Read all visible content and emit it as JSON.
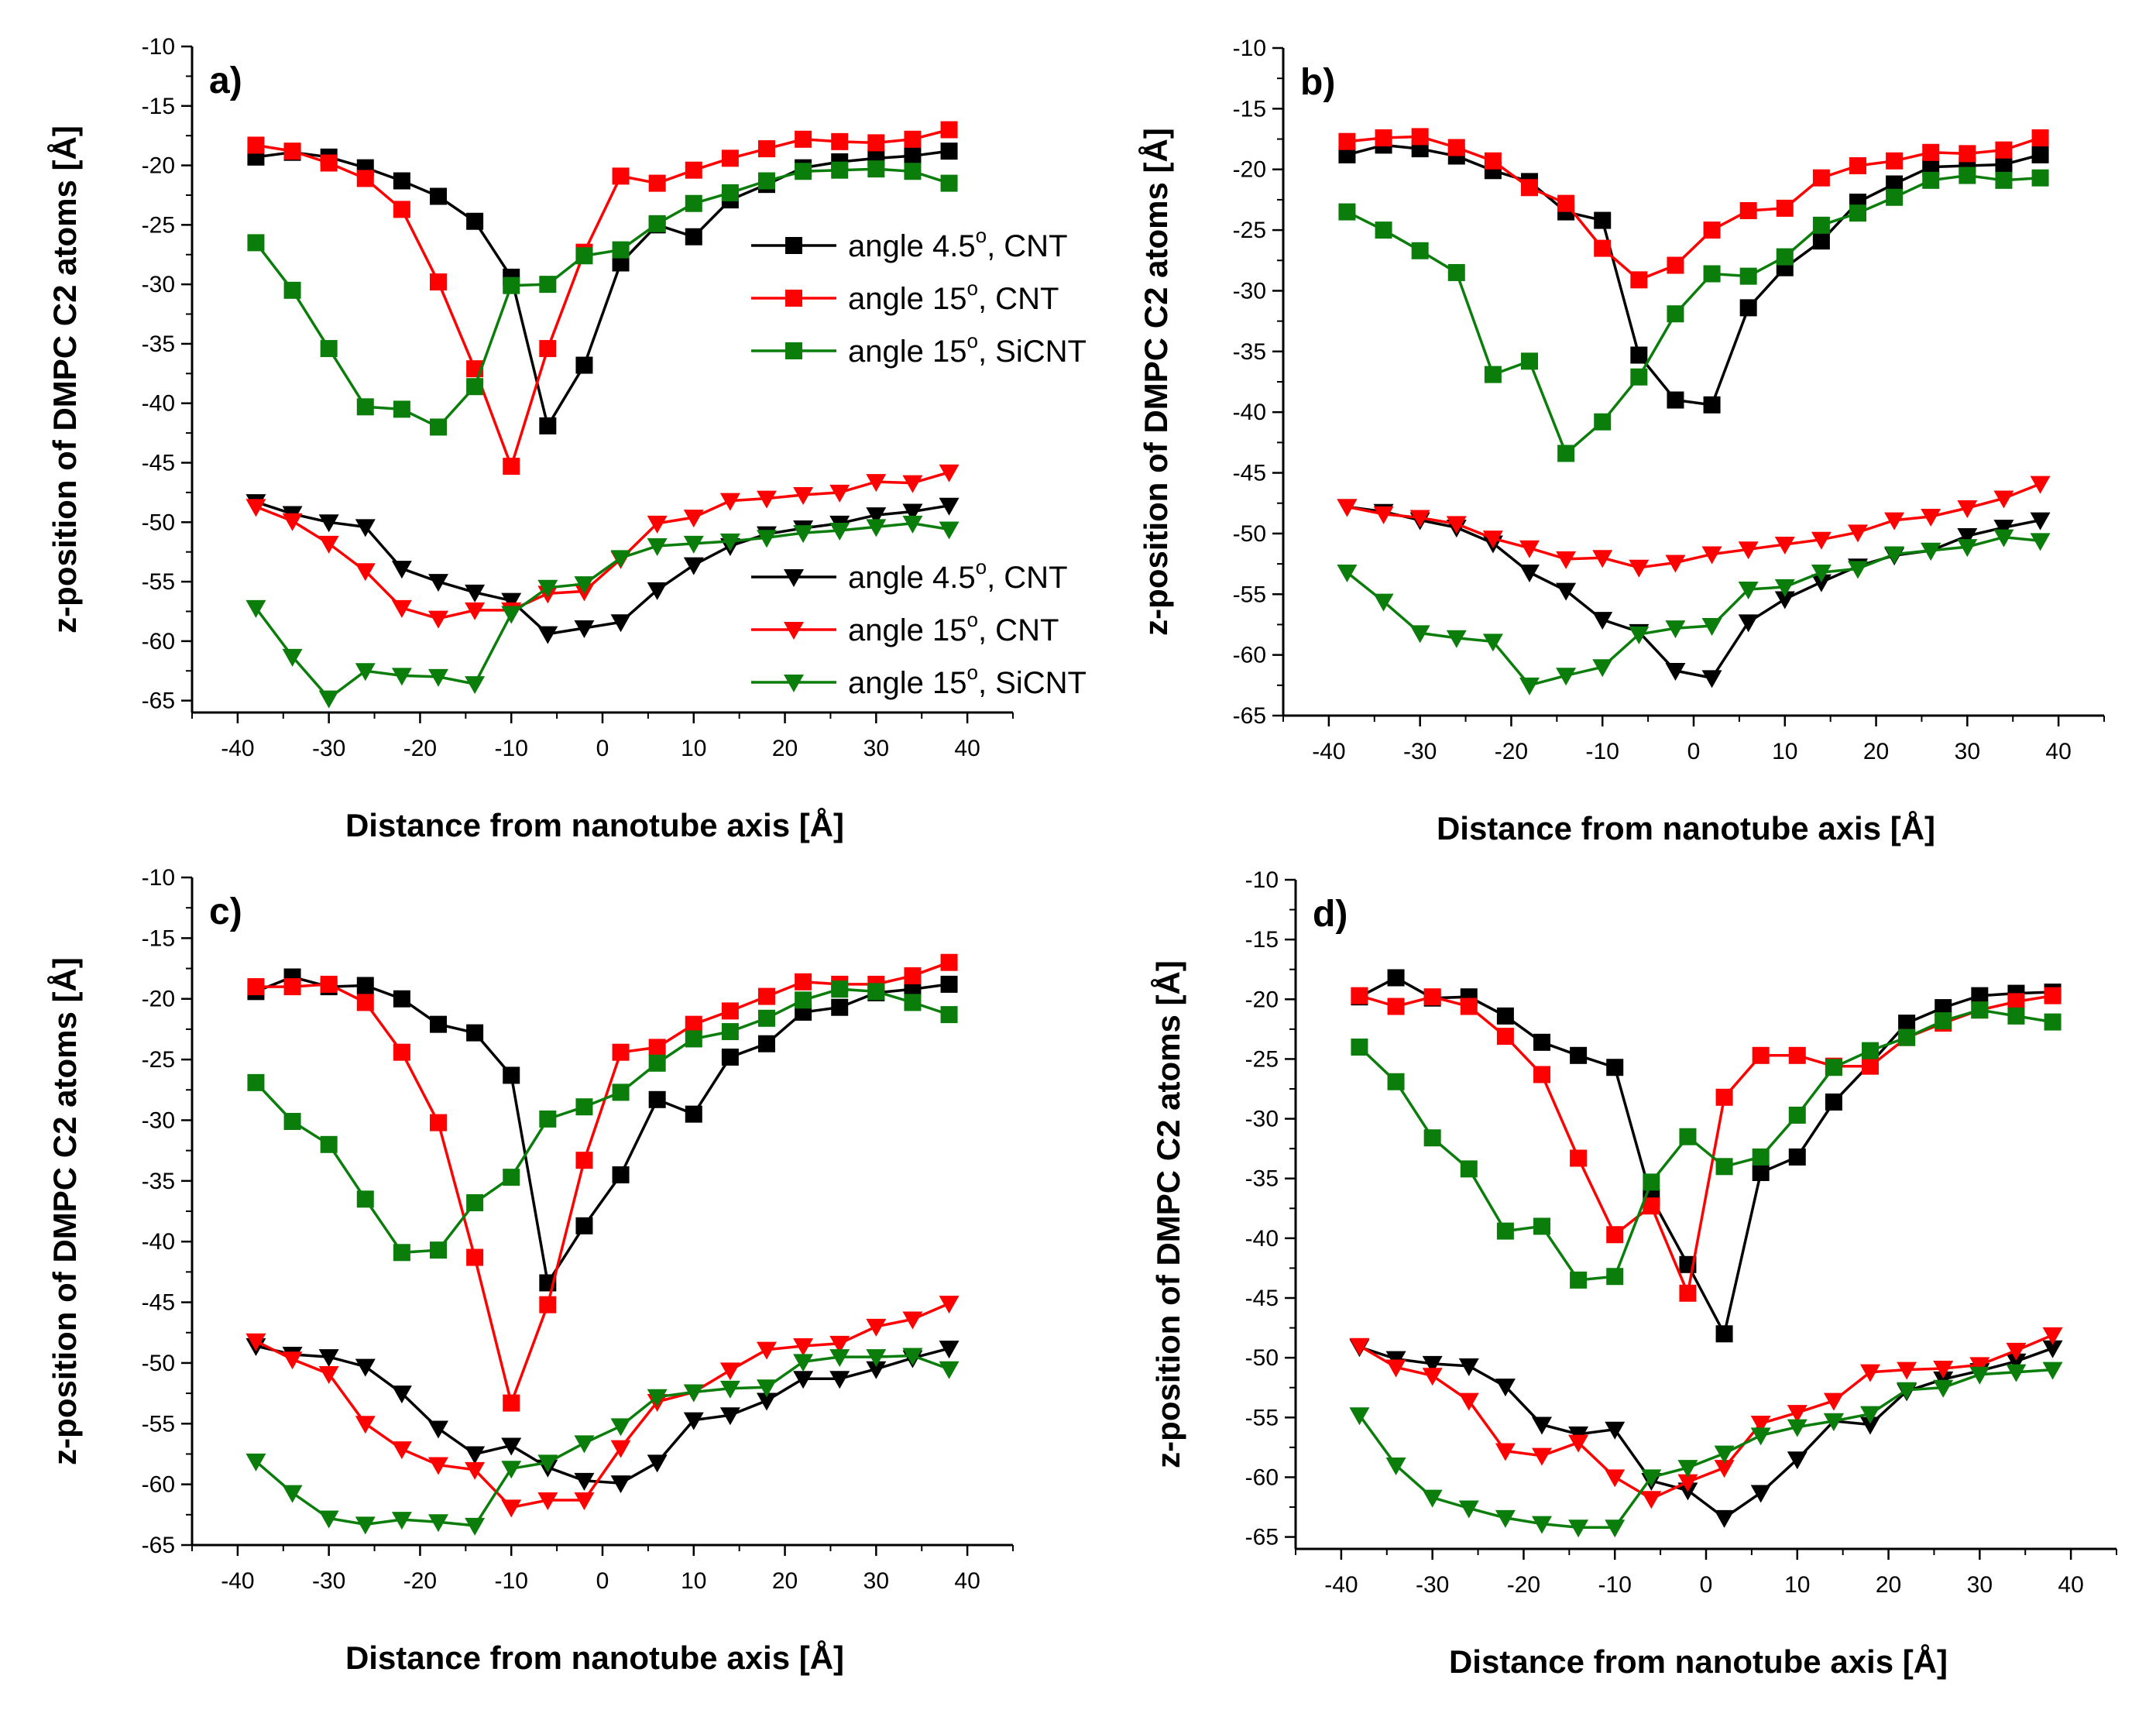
{
  "colors": {
    "CNT45": "#000000",
    "CNT15": "#ff0000",
    "SiCNT15": "#0a7d0a"
  },
  "chart_data": [
    {
      "type": "line",
      "panel": "a)",
      "xlabel": "Distance from nanotube axis [Å]",
      "ylabel": "z-position of DMPC C2 atoms [Å]",
      "xlim": [
        -45,
        45
      ],
      "ylim": [
        -66,
        -10
      ],
      "xticks": [
        -40,
        -30,
        -20,
        -10,
        0,
        10,
        20,
        30,
        40
      ],
      "yticks": [
        -65,
        -60,
        -55,
        -50,
        -45,
        -40,
        -35,
        -30,
        -25,
        -20,
        -15,
        -10
      ],
      "x": [
        -38,
        -34,
        -30,
        -26,
        -22,
        -18,
        -14,
        -10,
        -6,
        -2,
        2,
        6,
        10,
        14,
        18,
        22,
        26,
        30,
        34,
        38
      ],
      "legend_position": "right-middle",
      "series": [
        {
          "name": "angle 4.5o, CNT",
          "group": "upper",
          "marker": "square",
          "color_key": "CNT45",
          "values": [
            -19.3,
            -18.9,
            -19.3,
            -20.2,
            -21.3,
            -22.6,
            -24.7,
            -29.4,
            -41.9,
            -36.8,
            -28.2,
            -25.0,
            -26.0,
            -22.9,
            -21.6,
            -20.2,
            -19.7,
            -19.4,
            -19.2,
            -18.8
          ]
        },
        {
          "name": "angle 15o, CNT",
          "group": "upper",
          "marker": "square",
          "color_key": "CNT15",
          "values": [
            -18.3,
            -18.8,
            -19.8,
            -21.1,
            -23.7,
            -29.8,
            -37.1,
            -45.3,
            -35.4,
            -27.3,
            -20.9,
            -21.5,
            -20.4,
            -19.4,
            -18.6,
            -17.8,
            -18.0,
            -18.1,
            -17.8,
            -17.0
          ]
        },
        {
          "name": "angle 15o, SiCNT",
          "group": "upper",
          "marker": "square",
          "color_key": "SiCNT15",
          "values": [
            -26.5,
            -30.5,
            -35.4,
            -40.3,
            -40.5,
            -42.0,
            -38.6,
            -30.1,
            -30.0,
            -27.6,
            -27.1,
            -24.9,
            -23.2,
            -22.3,
            -21.3,
            -20.5,
            -20.4,
            -20.3,
            -20.5,
            -21.5
          ]
        },
        {
          "name": "angle 4.5o, CNT",
          "group": "lower",
          "marker": "triangle",
          "color_key": "CNT45",
          "values": [
            -48.3,
            -49.3,
            -50.0,
            -50.4,
            -53.9,
            -55.0,
            -55.9,
            -56.6,
            -59.4,
            -58.9,
            -58.4,
            -55.7,
            -53.6,
            -52.0,
            -51.0,
            -50.5,
            -50.1,
            -49.4,
            -49.1,
            -48.6
          ]
        },
        {
          "name": "angle 15o, CNT",
          "group": "lower",
          "marker": "triangle",
          "color_key": "CNT15",
          "values": [
            -48.7,
            -49.9,
            -51.8,
            -54.1,
            -57.2,
            -58.1,
            -57.4,
            -57.4,
            -56.0,
            -55.8,
            -53.1,
            -50.1,
            -49.6,
            -48.2,
            -48.0,
            -47.7,
            -47.5,
            -46.6,
            -46.7,
            -45.8
          ]
        },
        {
          "name": "angle 15o, SiCNT",
          "group": "lower",
          "marker": "triangle",
          "color_key": "SiCNT15",
          "values": [
            -57.2,
            -61.3,
            -64.8,
            -62.5,
            -62.9,
            -63.0,
            -63.6,
            -57.7,
            -55.5,
            -55.2,
            -53.0,
            -52.0,
            -51.8,
            -51.6,
            -51.3,
            -50.9,
            -50.7,
            -50.4,
            -50.1,
            -50.6
          ]
        }
      ]
    },
    {
      "type": "line",
      "panel": "b)",
      "xlabel": "Distance from nanotube axis [Å]",
      "ylabel": "z-position of DMPC C2 atoms [Å]",
      "xlim": [
        -45,
        45
      ],
      "ylim": [
        -65,
        -10
      ],
      "xticks": [
        -40,
        -30,
        -20,
        -10,
        0,
        10,
        20,
        30,
        40
      ],
      "yticks": [
        -65,
        -60,
        -55,
        -50,
        -45,
        -40,
        -35,
        -30,
        -25,
        -20,
        -15,
        -10
      ],
      "x": [
        -38,
        -34,
        -30,
        -26,
        -22,
        -18,
        -14,
        -10,
        -6,
        -2,
        2,
        6,
        10,
        14,
        18,
        22,
        26,
        30,
        34,
        38
      ],
      "series": [
        {
          "name": "angle 4.5o, CNT",
          "group": "upper",
          "marker": "square",
          "color_key": "CNT45",
          "values": [
            -18.8,
            -18.0,
            -18.3,
            -18.9,
            -20.1,
            -21.0,
            -23.5,
            -24.2,
            -35.3,
            -39.0,
            -39.4,
            -31.4,
            -28.1,
            -25.9,
            -22.7,
            -21.2,
            -19.8,
            -19.7,
            -19.6,
            -18.8
          ]
        },
        {
          "name": "angle 15o, CNT",
          "group": "upper",
          "marker": "square",
          "color_key": "CNT15",
          "values": [
            -17.7,
            -17.4,
            -17.3,
            -18.2,
            -19.3,
            -21.5,
            -22.8,
            -26.5,
            -29.1,
            -27.9,
            -25.0,
            -23.4,
            -23.2,
            -20.7,
            -19.7,
            -19.3,
            -18.6,
            -18.7,
            -18.4,
            -17.4
          ]
        },
        {
          "name": "angle 15o, SiCNT",
          "group": "upper",
          "marker": "square",
          "color_key": "SiCNT15",
          "values": [
            -23.5,
            -25.0,
            -26.7,
            -28.5,
            -36.9,
            -35.8,
            -43.4,
            -40.8,
            -37.1,
            -31.9,
            -28.6,
            -28.8,
            -27.2,
            -24.6,
            -23.6,
            -22.3,
            -20.9,
            -20.5,
            -20.9,
            -20.7
          ]
        },
        {
          "name": "angle 4.5o, CNT",
          "group": "lower",
          "marker": "triangle",
          "color_key": "CNT45",
          "values": [
            -47.8,
            -48.2,
            -48.9,
            -49.5,
            -50.8,
            -53.2,
            -54.7,
            -57.1,
            -58.1,
            -61.3,
            -61.9,
            -57.3,
            -55.4,
            -54.0,
            -52.7,
            -51.8,
            -51.4,
            -50.2,
            -49.5,
            -48.9
          ]
        },
        {
          "name": "angle 15o, CNT",
          "group": "lower",
          "marker": "triangle",
          "color_key": "CNT15",
          "values": [
            -47.8,
            -48.4,
            -48.7,
            -49.2,
            -50.4,
            -51.2,
            -52.1,
            -52.0,
            -52.8,
            -52.4,
            -51.7,
            -51.3,
            -50.9,
            -50.5,
            -49.9,
            -48.9,
            -48.6,
            -47.9,
            -47.1,
            -45.9
          ]
        },
        {
          "name": "angle 15o, SiCNT",
          "group": "lower",
          "marker": "triangle",
          "color_key": "SiCNT15",
          "values": [
            -53.2,
            -55.6,
            -58.2,
            -58.6,
            -58.9,
            -62.5,
            -61.7,
            -61.0,
            -58.3,
            -57.8,
            -57.6,
            -54.6,
            -54.4,
            -53.2,
            -52.9,
            -51.7,
            -51.4,
            -51.1,
            -50.3,
            -50.6
          ]
        }
      ]
    },
    {
      "type": "line",
      "panel": "c)",
      "xlabel": "Distance from nanotube axis [Å]",
      "ylabel": "z-position of DMPC C2 atoms [Å]",
      "xlim": [
        -45,
        45
      ],
      "ylim": [
        -65,
        -10
      ],
      "xticks": [
        -40,
        -30,
        -20,
        -10,
        0,
        10,
        20,
        30,
        40
      ],
      "yticks": [
        -65,
        -60,
        -55,
        -50,
        -45,
        -40,
        -35,
        -30,
        -25,
        -20,
        -15,
        -10
      ],
      "x": [
        -38,
        -34,
        -30,
        -26,
        -22,
        -18,
        -14,
        -10,
        -6,
        -2,
        2,
        6,
        10,
        14,
        18,
        22,
        26,
        30,
        34,
        38
      ],
      "series": [
        {
          "name": "angle 4.5o, CNT",
          "group": "upper",
          "marker": "square",
          "color_key": "CNT45",
          "values": [
            -19.4,
            -18.2,
            -19.0,
            -18.9,
            -20.0,
            -22.1,
            -22.8,
            -26.3,
            -43.4,
            -38.7,
            -34.5,
            -28.3,
            -29.5,
            -24.8,
            -23.7,
            -21.1,
            -20.7,
            -19.5,
            -19.2,
            -18.8
          ]
        },
        {
          "name": "angle 15o, CNT",
          "group": "upper",
          "marker": "square",
          "color_key": "CNT15",
          "values": [
            -19.0,
            -19.0,
            -18.8,
            -20.3,
            -24.4,
            -30.2,
            -41.3,
            -53.3,
            -45.2,
            -33.3,
            -24.4,
            -24.0,
            -22.1,
            -21.0,
            -19.8,
            -18.6,
            -18.8,
            -18.8,
            -18.1,
            -17.0
          ]
        },
        {
          "name": "angle 15o, SiCNT",
          "group": "upper",
          "marker": "square",
          "color_key": "SiCNT15",
          "values": [
            -26.9,
            -30.1,
            -32.0,
            -36.5,
            -40.9,
            -40.7,
            -36.8,
            -34.7,
            -29.9,
            -28.9,
            -27.7,
            -25.3,
            -23.3,
            -22.7,
            -21.6,
            -20.1,
            -19.2,
            -19.4,
            -20.3,
            -21.3
          ]
        },
        {
          "name": "angle 4.5o, CNT",
          "group": "lower",
          "marker": "triangle",
          "color_key": "CNT45",
          "values": [
            -48.6,
            -49.3,
            -49.5,
            -50.3,
            -52.5,
            -55.4,
            -57.5,
            -56.8,
            -58.6,
            -59.7,
            -59.9,
            -58.2,
            -54.7,
            -54.3,
            -53.1,
            -51.3,
            -51.3,
            -50.5,
            -49.6,
            -48.8
          ]
        },
        {
          "name": "angle 15o, CNT",
          "group": "lower",
          "marker": "triangle",
          "color_key": "CNT15",
          "values": [
            -48.2,
            -49.7,
            -50.9,
            -55.0,
            -57.1,
            -58.4,
            -58.8,
            -61.9,
            -61.3,
            -61.3,
            -57.0,
            -53.2,
            -52.4,
            -50.6,
            -48.9,
            -48.6,
            -48.4,
            -47.0,
            -46.4,
            -45.1
          ]
        },
        {
          "name": "angle 15o, SiCNT",
          "group": "lower",
          "marker": "triangle",
          "color_key": "SiCNT15",
          "values": [
            -58.1,
            -60.7,
            -62.8,
            -63.3,
            -62.9,
            -63.1,
            -63.4,
            -58.7,
            -58.2,
            -56.6,
            -55.2,
            -52.8,
            -52.4,
            -52.1,
            -52.0,
            -49.9,
            -49.5,
            -49.5,
            -49.4,
            -50.5
          ]
        }
      ]
    },
    {
      "type": "line",
      "panel": "d)",
      "xlabel": "Distance from nanotube axis [Å]",
      "ylabel": "z-position of DMPC C2 atoms [Å]",
      "xlim": [
        -45,
        45
      ],
      "ylim": [
        -66,
        -10
      ],
      "xticks": [
        -40,
        -30,
        -20,
        -10,
        0,
        10,
        20,
        30,
        40
      ],
      "yticks": [
        -65,
        -60,
        -55,
        -50,
        -45,
        -40,
        -35,
        -30,
        -25,
        -20,
        -15,
        -10
      ],
      "x": [
        -38,
        -34,
        -30,
        -26,
        -22,
        -18,
        -14,
        -10,
        -6,
        -2,
        2,
        6,
        10,
        14,
        18,
        22,
        26,
        30,
        34,
        38
      ],
      "series": [
        {
          "name": "angle 4.5o, CNT",
          "group": "upper",
          "marker": "square",
          "color_key": "CNT45",
          "values": [
            -19.8,
            -18.2,
            -19.9,
            -19.8,
            -21.4,
            -23.6,
            -24.7,
            -25.7,
            -36.6,
            -42.2,
            -48.0,
            -34.5,
            -33.2,
            -28.6,
            -25.4,
            -22.0,
            -20.7,
            -19.7,
            -19.5,
            -19.4
          ]
        },
        {
          "name": "angle 15o, CNT",
          "group": "upper",
          "marker": "square",
          "color_key": "CNT15",
          "values": [
            -19.7,
            -20.6,
            -19.8,
            -20.6,
            -23.1,
            -26.3,
            -33.3,
            -39.7,
            -37.3,
            -44.6,
            -28.2,
            -24.7,
            -24.7,
            -25.6,
            -25.6,
            -23.2,
            -22.0,
            -20.9,
            -20.2,
            -19.7
          ]
        },
        {
          "name": "angle 15o, SiCNT",
          "group": "upper",
          "marker": "square",
          "color_key": "SiCNT15",
          "values": [
            -24.0,
            -26.9,
            -31.6,
            -34.2,
            -39.4,
            -39.0,
            -43.5,
            -43.2,
            -35.3,
            -31.5,
            -34.0,
            -33.2,
            -29.7,
            -25.7,
            -24.3,
            -23.2,
            -21.8,
            -20.9,
            -21.4,
            -21.9
          ]
        },
        {
          "name": "angle 4.5o, CNT",
          "group": "lower",
          "marker": "triangle",
          "color_key": "CNT45",
          "values": [
            -49.1,
            -50.1,
            -50.5,
            -50.7,
            -52.4,
            -55.6,
            -56.4,
            -56.0,
            -60.3,
            -61.1,
            -63.4,
            -61.3,
            -58.5,
            -55.3,
            -55.6,
            -52.8,
            -51.8,
            -51.1,
            -50.3,
            -49.2
          ]
        },
        {
          "name": "angle 15o, CNT",
          "group": "lower",
          "marker": "triangle",
          "color_key": "CNT15",
          "values": [
            -49.0,
            -50.8,
            -51.5,
            -53.6,
            -57.8,
            -58.2,
            -57.1,
            -60.0,
            -61.8,
            -60.4,
            -59.2,
            -55.5,
            -54.6,
            -53.6,
            -51.2,
            -51.0,
            -50.9,
            -50.6,
            -49.4,
            -48.1
          ]
        },
        {
          "name": "angle 15o, SiCNT",
          "group": "lower",
          "marker": "triangle",
          "color_key": "SiCNT15",
          "values": [
            -54.8,
            -59.0,
            -61.7,
            -62.6,
            -63.4,
            -63.9,
            -64.2,
            -64.2,
            -60.0,
            -59.2,
            -58.0,
            -56.5,
            -55.8,
            -55.3,
            -54.7,
            -52.7,
            -52.5,
            -51.4,
            -51.2,
            -51.0
          ]
        }
      ]
    }
  ],
  "legends": [
    {
      "group": "upper",
      "entries": [
        {
          "prefix": "angle 4.5",
          "sup": "o",
          "suffix": ", CNT",
          "color_key": "CNT45",
          "marker": "square"
        },
        {
          "prefix": "angle 15",
          "sup": "o",
          "suffix": ", CNT",
          "color_key": "CNT15",
          "marker": "square"
        },
        {
          "prefix": "angle 15",
          "sup": "o",
          "suffix": ", SiCNT",
          "color_key": "SiCNT15",
          "marker": "square"
        }
      ]
    },
    {
      "group": "lower",
      "entries": [
        {
          "prefix": "angle 4.5",
          "sup": "o",
          "suffix": ", CNT",
          "color_key": "CNT45",
          "marker": "triangle"
        },
        {
          "prefix": "angle 15",
          "sup": "o",
          "suffix": ", CNT",
          "color_key": "CNT15",
          "marker": "triangle"
        },
        {
          "prefix": "angle 15",
          "sup": "o",
          "suffix": ", SiCNT",
          "color_key": "SiCNT15",
          "marker": "triangle"
        }
      ]
    }
  ]
}
